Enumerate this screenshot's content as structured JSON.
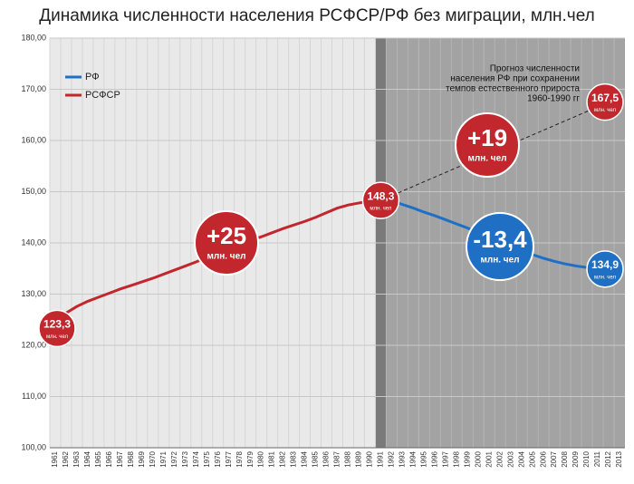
{
  "chart_data": {
    "type": "line",
    "title": "Динамика численности населения РСФСР/РФ без миграции, млн.чел",
    "categories": [
      "1961",
      "1962",
      "1963",
      "1964",
      "1965",
      "1966",
      "1967",
      "1968",
      "1969",
      "1970",
      "1971",
      "1972",
      "1973",
      "1974",
      "1975",
      "1976",
      "1977",
      "1978",
      "1979",
      "1980",
      "1981",
      "1982",
      "1983",
      "1984",
      "1985",
      "1986",
      "1987",
      "1988",
      "1989",
      "1990",
      "1991",
      "1992",
      "1993",
      "1994",
      "1995",
      "1996",
      "1997",
      "1998",
      "1999",
      "2000",
      "2001",
      "2002",
      "2003",
      "2004",
      "2005",
      "2006",
      "2007",
      "2008",
      "2009",
      "2010",
      "2011",
      "2012",
      "2013"
    ],
    "series": [
      {
        "name": "РФ",
        "color": "#1f6fc5",
        "values": [
          null,
          null,
          null,
          null,
          null,
          null,
          null,
          null,
          null,
          null,
          null,
          null,
          null,
          null,
          null,
          null,
          null,
          null,
          null,
          null,
          null,
          null,
          null,
          null,
          null,
          null,
          null,
          null,
          null,
          null,
          148.3,
          148.2,
          147.5,
          146.8,
          146.0,
          145.3,
          144.5,
          143.7,
          142.9,
          142.0,
          141.1,
          140.2,
          139.3,
          138.5,
          137.7,
          137.0,
          136.4,
          135.9,
          135.5,
          135.2,
          135.0,
          134.9,
          null
        ]
      },
      {
        "name": "РСФСР",
        "color": "#c1272d",
        "values": [
          123.3,
          126.3,
          127.6,
          128.6,
          129.4,
          130.2,
          131.0,
          131.7,
          132.4,
          133.1,
          133.9,
          134.7,
          135.5,
          136.3,
          137.2,
          138.0,
          138.9,
          139.7,
          140.5,
          141.2,
          142.0,
          142.8,
          143.5,
          144.2,
          145.0,
          145.9,
          146.8,
          147.4,
          147.8,
          148.2,
          148.3,
          null,
          null,
          null,
          null,
          null,
          null,
          null,
          null,
          null,
          null,
          null,
          null,
          null,
          null,
          null,
          null,
          null,
          null,
          null,
          null,
          null,
          null
        ]
      }
    ],
    "projection": {
      "categories": [
        "1991",
        "2012"
      ],
      "values": [
        148.3,
        167.5
      ],
      "lines": [
        "Прогноз численности",
        "населения РФ при сохранении",
        "темпов естественного прироста",
        "1960-1990 гг"
      ]
    },
    "point_labels": [
      {
        "category": "1961",
        "label": "123,3",
        "unit": "млн. чел",
        "color": "#c1272d"
      },
      {
        "category": "1991",
        "label": "148,3",
        "unit": "млн. чел",
        "color": "#c1272d"
      },
      {
        "category": "2012",
        "label": "167,5",
        "unit": "млн. чел",
        "color": "#c1272d"
      },
      {
        "category": "2012",
        "label": "134,9",
        "unit": "млн. чел",
        "color": "#1f6fc5"
      }
    ],
    "badges": [
      {
        "label": "+25",
        "unit": "млн. чел",
        "color": "#c1272d"
      },
      {
        "label": "+19",
        "unit": "млн. чел",
        "color": "#c1272d"
      },
      {
        "label": "-13,4",
        "unit": "млн. чел",
        "color": "#1f6fc5"
      }
    ],
    "ylim": [
      100,
      180
    ],
    "yticks": [
      {
        "value": 100,
        "label": "100,00"
      },
      {
        "value": 110,
        "label": "110,00"
      },
      {
        "value": 120,
        "label": "120,00"
      },
      {
        "value": 130,
        "label": "130,00"
      },
      {
        "value": 140,
        "label": "140,00"
      },
      {
        "value": 150,
        "label": "150,00"
      },
      {
        "value": 160,
        "label": "160,00"
      },
      {
        "value": 170,
        "label": "170,00"
      },
      {
        "value": 180,
        "label": "180,00"
      }
    ],
    "grid": true
  }
}
